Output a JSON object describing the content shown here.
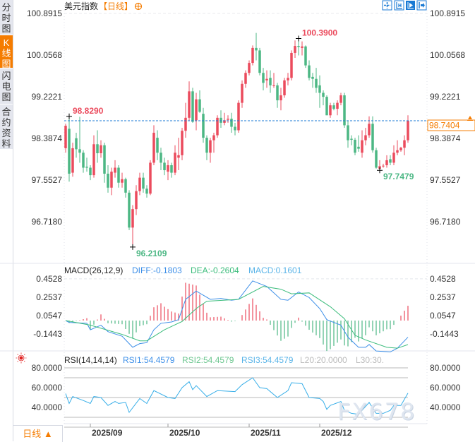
{
  "sidebar": {
    "tabs": [
      {
        "label": "分时图",
        "active": false
      },
      {
        "label": "K线图",
        "active": true
      },
      {
        "label": "闪电图",
        "active": false
      },
      {
        "label": "合约资料",
        "active": false
      }
    ]
  },
  "header": {
    "title": "美元指数",
    "period": "【日线】",
    "add_icon": "plus-circle-icon"
  },
  "toolbar": {
    "icons": [
      "crosshair-icon",
      "zoom-range-icon",
      "play-forward-icon",
      "move-right-icon"
    ],
    "color": "#1a7ad4"
  },
  "colors": {
    "up": "#eb4b5d",
    "down": "#4cb784",
    "diff": "#3d8fe8",
    "dea": "#3dbd7d",
    "macd": "#5ab4e8",
    "rsi": "#37aee8",
    "accent": "#f57c00",
    "last_price_line": "#1a7ad4"
  },
  "price_axis": {
    "ticks": [
      "100.8915",
      "100.0568",
      "99.2221",
      "98.3874",
      "97.5527",
      "96.7180"
    ],
    "tick_values": [
      100.8915,
      100.0568,
      99.2221,
      98.3874,
      97.5527,
      96.718
    ]
  },
  "last_price": {
    "label": "98.7404",
    "value": 98.7404
  },
  "annotations": [
    {
      "label": "98.8290",
      "index": 1,
      "value": 98.829,
      "type": "high"
    },
    {
      "label": "100.3900",
      "index": 66,
      "value": 100.39,
      "type": "high"
    },
    {
      "label": "96.2109",
      "index": 19,
      "value": 96.2109,
      "type": "low"
    },
    {
      "label": "97.7479",
      "index": 89,
      "value": 97.7479,
      "type": "low"
    }
  ],
  "candles": [
    [
      98.19,
      98.68,
      98.1,
      98.64
    ],
    [
      98.58,
      98.83,
      97.52,
      97.68
    ],
    [
      97.7,
      98.3,
      97.62,
      98.19
    ],
    [
      98.39,
      98.5,
      98.0,
      98.17
    ],
    [
      98.17,
      98.82,
      97.9,
      98.1
    ],
    [
      98.1,
      98.15,
      97.7,
      97.8
    ],
    [
      97.82,
      98.0,
      97.72,
      97.8
    ],
    [
      97.8,
      97.85,
      97.55,
      97.65
    ],
    [
      97.65,
      98.45,
      97.6,
      98.27
    ],
    [
      98.27,
      98.55,
      97.9,
      98.09
    ],
    [
      98.09,
      98.35,
      98.0,
      98.25
    ],
    [
      98.25,
      98.3,
      97.5,
      97.68
    ],
    [
      97.68,
      97.85,
      97.3,
      97.4
    ],
    [
      97.4,
      97.8,
      97.25,
      97.72
    ],
    [
      97.7,
      97.95,
      97.6,
      97.8
    ],
    [
      97.8,
      97.85,
      97.4,
      97.5
    ],
    [
      97.5,
      97.7,
      97.4,
      97.57
    ],
    [
      97.57,
      97.6,
      97.2,
      97.3
    ],
    [
      97.3,
      97.35,
      96.55,
      96.6
    ],
    [
      96.6,
      97.05,
      96.2109,
      96.97
    ],
    [
      96.97,
      97.45,
      96.85,
      97.33
    ],
    [
      97.33,
      97.7,
      97.25,
      97.6
    ],
    [
      97.6,
      97.7,
      97.3,
      97.38
    ],
    [
      97.38,
      97.45,
      97.2,
      97.28
    ],
    [
      97.28,
      97.95,
      97.25,
      97.9
    ],
    [
      97.9,
      98.65,
      97.85,
      98.5
    ],
    [
      98.4,
      98.55,
      97.95,
      98.1
    ],
    [
      98.1,
      98.2,
      97.75,
      97.9
    ],
    [
      97.9,
      98.0,
      97.65,
      97.75
    ],
    [
      97.72,
      97.95,
      97.55,
      97.85
    ],
    [
      97.85,
      97.9,
      97.6,
      97.7
    ],
    [
      97.7,
      98.25,
      97.65,
      98.1
    ],
    [
      98.0,
      98.4,
      97.75,
      98.05
    ],
    [
      98.05,
      98.6,
      97.95,
      98.54
    ],
    [
      98.54,
      99.1,
      98.4,
      98.8
    ],
    [
      98.8,
      99.53,
      98.75,
      99.33
    ],
    [
      99.33,
      99.4,
      98.7,
      98.72
    ],
    [
      98.75,
      99.3,
      98.55,
      99.17
    ],
    [
      99.17,
      99.35,
      98.9,
      98.92
    ],
    [
      98.88,
      99.0,
      98.3,
      98.4
    ],
    [
      98.4,
      98.45,
      97.95,
      98.1
    ],
    [
      98.1,
      98.4,
      97.9,
      98.35
    ],
    [
      98.35,
      98.5,
      98.1,
      98.45
    ],
    [
      98.45,
      98.85,
      98.4,
      98.8
    ],
    [
      98.8,
      98.95,
      98.6,
      98.7
    ],
    [
      98.7,
      98.9,
      98.65,
      98.75
    ],
    [
      98.76,
      98.85,
      98.7,
      98.78
    ],
    [
      98.78,
      98.9,
      98.5,
      98.62
    ],
    [
      98.62,
      98.7,
      98.45,
      98.55
    ],
    [
      98.55,
      99.15,
      98.5,
      99.1
    ],
    [
      99.1,
      99.55,
      99.0,
      99.48
    ],
    [
      99.48,
      99.75,
      99.4,
      99.7
    ],
    [
      99.7,
      99.95,
      99.65,
      99.9
    ],
    [
      99.9,
      100.25,
      99.85,
      100.2
    ],
    [
      100.2,
      100.5,
      99.95,
      100.15
    ],
    [
      100.15,
      100.2,
      99.65,
      99.7
    ],
    [
      99.7,
      99.8,
      99.35,
      99.5
    ],
    [
      99.55,
      99.75,
      99.4,
      99.58
    ],
    [
      99.6,
      99.75,
      99.3,
      99.45
    ],
    [
      99.45,
      99.7,
      99.4,
      99.45
    ],
    [
      99.45,
      99.5,
      99.0,
      99.15
    ],
    [
      99.15,
      99.4,
      98.95,
      99.25
    ],
    [
      99.25,
      99.6,
      99.2,
      99.55
    ],
    [
      99.55,
      99.7,
      99.45,
      99.6
    ],
    [
      99.6,
      100.15,
      99.55,
      100.1
    ],
    [
      100.1,
      100.35,
      100.0,
      100.24
    ],
    [
      100.24,
      100.39,
      100.05,
      100.22
    ],
    [
      100.2,
      100.33,
      100.05,
      100.23
    ],
    [
      100.23,
      100.25,
      99.8,
      99.85
    ],
    [
      99.85,
      99.95,
      99.55,
      99.6
    ],
    [
      99.62,
      99.7,
      99.4,
      99.58
    ],
    [
      99.58,
      99.8,
      99.3,
      99.4
    ],
    [
      99.45,
      99.65,
      99.0,
      99.3
    ],
    [
      99.3,
      99.35,
      99.05,
      99.22
    ],
    [
      99.22,
      99.25,
      98.85,
      98.85
    ],
    [
      98.85,
      99.1,
      98.8,
      99.05
    ],
    [
      99.05,
      99.1,
      98.95,
      98.98
    ],
    [
      98.98,
      99.15,
      98.85,
      99.1
    ],
    [
      99.1,
      99.3,
      99.05,
      99.25
    ],
    [
      99.25,
      99.3,
      98.6,
      98.65
    ],
    [
      98.65,
      98.75,
      98.2,
      98.35
    ],
    [
      98.38,
      98.45,
      98.25,
      98.36
    ],
    [
      98.36,
      98.4,
      98.05,
      98.1
    ],
    [
      98.22,
      98.45,
      98.12,
      98.18
    ],
    [
      98.1,
      98.55,
      98.0,
      98.35
    ],
    [
      98.35,
      98.6,
      98.25,
      98.45
    ],
    [
      98.45,
      98.83,
      98.4,
      98.68
    ],
    [
      98.68,
      98.83,
      98.1,
      98.15
    ],
    [
      98.15,
      98.2,
      97.78,
      97.8
    ],
    [
      97.78,
      97.95,
      97.7479,
      97.83
    ],
    [
      97.84,
      97.88,
      97.8,
      97.84
    ],
    [
      97.85,
      98.05,
      97.8,
      97.95
    ],
    [
      97.97,
      98.05,
      97.85,
      97.9
    ],
    [
      97.9,
      98.25,
      97.85,
      98.1
    ],
    [
      98.1,
      98.35,
      98.05,
      98.15
    ],
    [
      98.15,
      98.22,
      98.12,
      98.2
    ],
    [
      98.2,
      98.45,
      98.05,
      98.35
    ],
    [
      98.35,
      98.85,
      98.3,
      98.7404
    ]
  ],
  "macd": {
    "title": "MACD(26,12,9)",
    "diff_label": "DIFF:-0.1803",
    "dea_label": "DEA:-0.2604",
    "macd_label": "MACD:0.1601",
    "ticks": [
      "0.4528",
      "0.2537",
      "0.0547",
      "-0.1443"
    ],
    "tick_values": [
      0.4528,
      0.2537,
      0.0547,
      -0.1443
    ],
    "diff": [
      [
        0,
        0
      ],
      [
        1,
        -0.02
      ],
      [
        6,
        -0.03
      ],
      [
        7,
        -0.1
      ],
      [
        10,
        -0.05
      ],
      [
        12,
        -0.12
      ],
      [
        16,
        -0.17
      ],
      [
        18,
        -0.25
      ],
      [
        19,
        -0.29
      ],
      [
        21,
        -0.25
      ],
      [
        23,
        -0.24
      ],
      [
        25,
        -0.1
      ],
      [
        27,
        -0.03
      ],
      [
        30,
        -0.015
      ],
      [
        32,
        0.01
      ],
      [
        34,
        0.23
      ],
      [
        37,
        0.32
      ],
      [
        41,
        0.23
      ],
      [
        44,
        0.24
      ],
      [
        47,
        0.22
      ],
      [
        49,
        0.23
      ],
      [
        53,
        0.43
      ],
      [
        57,
        0.37
      ],
      [
        61,
        0.23
      ],
      [
        63,
        0.22
      ],
      [
        66,
        0.31
      ],
      [
        69,
        0.25
      ],
      [
        72,
        0.13
      ],
      [
        74,
        0.01
      ],
      [
        78,
        -0.05
      ],
      [
        80,
        -0.18
      ],
      [
        83,
        -0.29
      ],
      [
        85,
        -0.29
      ],
      [
        86,
        -0.26
      ],
      [
        88,
        -0.33
      ],
      [
        92,
        -0.34
      ],
      [
        94,
        -0.3
      ],
      [
        97,
        -0.1803
      ]
    ],
    "dea": [
      [
        0,
        0
      ],
      [
        7,
        -0.05
      ],
      [
        16,
        -0.15
      ],
      [
        21,
        -0.22
      ],
      [
        23,
        -0.22
      ],
      [
        28,
        -0.1
      ],
      [
        33,
        -0.01
      ],
      [
        37,
        0.13
      ],
      [
        40,
        0.21
      ],
      [
        49,
        0.23
      ],
      [
        56,
        0.37
      ],
      [
        61,
        0.34
      ],
      [
        64,
        0.29
      ],
      [
        69,
        0.3
      ],
      [
        75,
        0.15
      ],
      [
        79,
        0.02
      ],
      [
        82,
        -0.16
      ],
      [
        85,
        -0.21
      ],
      [
        91,
        -0.29
      ],
      [
        94,
        -0.3
      ],
      [
        97,
        -0.2604
      ]
    ]
  },
  "rsi": {
    "title": "RSI(14,14,14)",
    "rsi1_label": "RSI1:54.4579",
    "rsi2_label": "RSI2:54.4579",
    "rsi3_label": "RSI3:54.4579",
    "l20_label": "L20:20.0000",
    "l30_label": "L30:30.",
    "ticks": [
      "80.0000",
      "60.0000",
      "40.0000"
    ],
    "tick_values": [
      80,
      60,
      40
    ],
    "grid_levels": [
      80,
      70,
      50,
      30,
      20
    ],
    "settings_icon": "sun-settings-icon",
    "values": [
      [
        0,
        54
      ],
      [
        1,
        44
      ],
      [
        2,
        51
      ],
      [
        5,
        47
      ],
      [
        7,
        44
      ],
      [
        8,
        51
      ],
      [
        10,
        50
      ],
      [
        12,
        42
      ],
      [
        14,
        46
      ],
      [
        15,
        44
      ],
      [
        17,
        45
      ],
      [
        18,
        35
      ],
      [
        21,
        49
      ],
      [
        23,
        44
      ],
      [
        25,
        57
      ],
      [
        29,
        50
      ],
      [
        31,
        49
      ],
      [
        33,
        60
      ],
      [
        35,
        66
      ],
      [
        36,
        58
      ],
      [
        37,
        62
      ],
      [
        40,
        51
      ],
      [
        43,
        57
      ],
      [
        48,
        56
      ],
      [
        50,
        63
      ],
      [
        53,
        70
      ],
      [
        55,
        60
      ],
      [
        57,
        59
      ],
      [
        60,
        50
      ],
      [
        63,
        57
      ],
      [
        64,
        65
      ],
      [
        67,
        64
      ],
      [
        69,
        50
      ],
      [
        72,
        49
      ],
      [
        73,
        46
      ],
      [
        74,
        38
      ],
      [
        75,
        42
      ],
      [
        78,
        46
      ],
      [
        79,
        37
      ],
      [
        81,
        34
      ],
      [
        83,
        33
      ],
      [
        84,
        37
      ],
      [
        86,
        45
      ],
      [
        88,
        34
      ],
      [
        90,
        34
      ],
      [
        92,
        37
      ],
      [
        93,
        42
      ],
      [
        95,
        42
      ],
      [
        97,
        54.4579
      ]
    ]
  },
  "time_axis": {
    "labels": [
      {
        "label": "2025/09",
        "index": 7
      },
      {
        "label": "2025/10",
        "index": 29
      },
      {
        "label": "2025/11",
        "index": 52
      },
      {
        "label": "2025/12",
        "index": 72
      }
    ]
  },
  "period_button": {
    "label": "日线",
    "icon": "triangle-up-icon"
  },
  "watermark": "FX678"
}
